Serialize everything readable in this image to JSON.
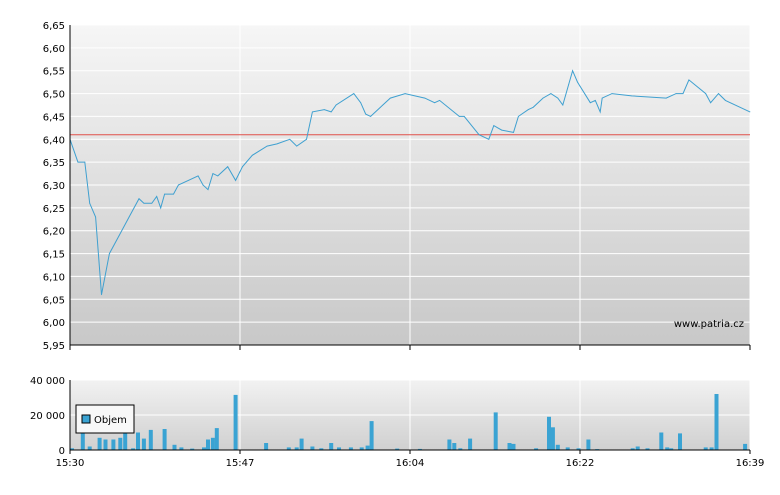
{
  "chart_data": [
    {
      "type": "line",
      "name_hint": "price",
      "x_ticks": [
        "15:30",
        "15:47",
        "16:04",
        "16:22",
        "16:39"
      ],
      "y_ticks": [
        "6,65",
        "6,60",
        "6,55",
        "6,50",
        "6,45",
        "6,40",
        "6,35",
        "6,30",
        "6,25",
        "6,20",
        "6,15",
        "6,10",
        "6,05",
        "6,00",
        "5,95"
      ],
      "ylim": [
        5.95,
        6.65
      ],
      "xlim": [
        0,
        69
      ],
      "grid": true,
      "reference_line": 6.41,
      "watermark": "www.patria.cz",
      "series": [
        {
          "values": [
            [
              0,
              6.4
            ],
            [
              0.8,
              6.35
            ],
            [
              1.5,
              6.35
            ],
            [
              2,
              6.26
            ],
            [
              2.6,
              6.23
            ],
            [
              3.2,
              6.06
            ],
            [
              4,
              6.15
            ],
            [
              5,
              6.19
            ],
            [
              6,
              6.23
            ],
            [
              7,
              6.27
            ],
            [
              7.5,
              6.26
            ],
            [
              8.3,
              6.26
            ],
            [
              8.8,
              6.275
            ],
            [
              9.2,
              6.25
            ],
            [
              9.6,
              6.28
            ],
            [
              10.5,
              6.28
            ],
            [
              11,
              6.3
            ],
            [
              12,
              6.31
            ],
            [
              13,
              6.32
            ],
            [
              13.5,
              6.3
            ],
            [
              14,
              6.29
            ],
            [
              14.5,
              6.325
            ],
            [
              15,
              6.32
            ],
            [
              16,
              6.34
            ],
            [
              16.8,
              6.31
            ],
            [
              17.5,
              6.34
            ],
            [
              18.5,
              6.365
            ],
            [
              20,
              6.385
            ],
            [
              21,
              6.39
            ],
            [
              22.3,
              6.4
            ],
            [
              23,
              6.385
            ],
            [
              24,
              6.4
            ],
            [
              24.6,
              6.46
            ],
            [
              25.8,
              6.465
            ],
            [
              26.5,
              6.46
            ],
            [
              27,
              6.475
            ],
            [
              28.8,
              6.5
            ],
            [
              29.5,
              6.48
            ],
            [
              30,
              6.455
            ],
            [
              30.5,
              6.45
            ],
            [
              32.5,
              6.49
            ],
            [
              34,
              6.5
            ],
            [
              36,
              6.49
            ],
            [
              37,
              6.48
            ],
            [
              37.5,
              6.485
            ],
            [
              39.5,
              6.45
            ],
            [
              40,
              6.45
            ],
            [
              41.5,
              6.41
            ],
            [
              42.5,
              6.4
            ],
            [
              43,
              6.43
            ],
            [
              43.8,
              6.42
            ],
            [
              45,
              6.415
            ],
            [
              45.5,
              6.45
            ],
            [
              46.5,
              6.465
            ],
            [
              47,
              6.47
            ],
            [
              48,
              6.49
            ],
            [
              48.8,
              6.5
            ],
            [
              49.5,
              6.49
            ],
            [
              50,
              6.475
            ],
            [
              50.6,
              6.52
            ],
            [
              51,
              6.55
            ],
            [
              51.5,
              6.525
            ],
            [
              52.8,
              6.48
            ],
            [
              53.3,
              6.485
            ],
            [
              53.8,
              6.46
            ],
            [
              54,
              6.49
            ],
            [
              55,
              6.5
            ],
            [
              57,
              6.495
            ],
            [
              60.5,
              6.49
            ],
            [
              61.5,
              6.5
            ],
            [
              62.2,
              6.5
            ],
            [
              62.8,
              6.53
            ],
            [
              64.5,
              6.5
            ],
            [
              65,
              6.48
            ],
            [
              65.8,
              6.5
            ],
            [
              66.5,
              6.485
            ],
            [
              69,
              6.46
            ]
          ]
        }
      ]
    },
    {
      "type": "bar",
      "name_hint": "volume",
      "x_ticks": [
        "15:30",
        "15:47",
        "16:04",
        "16:22",
        "16:39"
      ],
      "y_ticks": [
        "40 000",
        "20 000",
        "0"
      ],
      "ylim": [
        0,
        40000
      ],
      "xlim": [
        0,
        69
      ],
      "grid": true,
      "legend": {
        "label": "Objem",
        "placement": "left"
      },
      "series": [
        {
          "name": "Objem",
          "values": [
            [
              0.2,
              1000
            ],
            [
              1.3,
              18000
            ],
            [
              2,
              2000
            ],
            [
              3,
              7000
            ],
            [
              3.6,
              6000
            ],
            [
              4.4,
              6000
            ],
            [
              5.1,
              7000
            ],
            [
              5.6,
              11500
            ],
            [
              6.4,
              1000
            ],
            [
              6.9,
              10000
            ],
            [
              7.5,
              6500
            ],
            [
              8.2,
              11500
            ],
            [
              9.6,
              12000
            ],
            [
              10.6,
              3000
            ],
            [
              11.3,
              1500
            ],
            [
              12.4,
              800
            ],
            [
              13.6,
              1500
            ],
            [
              14,
              6000
            ],
            [
              14.5,
              7000
            ],
            [
              14.9,
              12500
            ],
            [
              16.8,
              31500
            ],
            [
              19.9,
              4000
            ],
            [
              22.2,
              1500
            ],
            [
              23,
              1500
            ],
            [
              23.5,
              6500
            ],
            [
              24.6,
              2000
            ],
            [
              25.5,
              1000
            ],
            [
              26.5,
              4000
            ],
            [
              27.3,
              1500
            ],
            [
              28.5,
              1500
            ],
            [
              29.6,
              1500
            ],
            [
              30.2,
              2500
            ],
            [
              30.6,
              16500
            ],
            [
              33.2,
              800
            ],
            [
              35.5,
              600
            ],
            [
              38.5,
              6000
            ],
            [
              39,
              4000
            ],
            [
              39.6,
              1000
            ],
            [
              40.6,
              6500
            ],
            [
              43.2,
              21500
            ],
            [
              44.6,
              4000
            ],
            [
              45,
              3500
            ],
            [
              47.3,
              1000
            ],
            [
              48.6,
              19000
            ],
            [
              49,
              13000
            ],
            [
              49.5,
              3000
            ],
            [
              50.5,
              1500
            ],
            [
              51.6,
              1000
            ],
            [
              52.6,
              6000
            ],
            [
              53.5,
              500
            ],
            [
              57.1,
              1000
            ],
            [
              57.6,
              2000
            ],
            [
              58.6,
              1000
            ],
            [
              60,
              10000
            ],
            [
              60.6,
              1500
            ],
            [
              61,
              1000
            ],
            [
              61.9,
              9500
            ],
            [
              64.5,
              1500
            ],
            [
              65.1,
              1500
            ],
            [
              65.6,
              32000
            ],
            [
              68.5,
              3500
            ]
          ]
        }
      ]
    }
  ]
}
